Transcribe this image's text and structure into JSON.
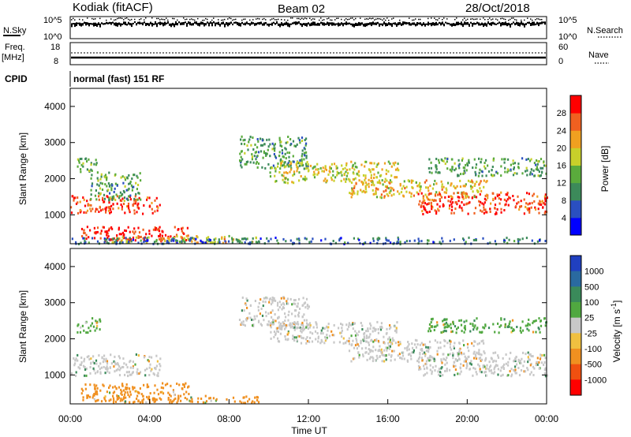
{
  "header": {
    "station": "Kodiak (fitACF)",
    "beam": "Beam 02",
    "date": "28/Oct/2018"
  },
  "nsky_panel": {
    "left_label": "N.Sky",
    "left_ticks": [
      "10^5",
      "10^0"
    ],
    "right_label": "N.Search",
    "right_ticks": [
      "10^5",
      "10^0"
    ]
  },
  "freq_panel": {
    "left_label_line1": "Freq.",
    "left_label_line2": "[MHz]",
    "left_ticks": [
      "18",
      "8"
    ],
    "right_label": "Nave",
    "right_ticks": [
      "60",
      "0"
    ]
  },
  "cpid": {
    "label": "CPID",
    "program": "normal (fast) 151 RF"
  },
  "colors": {
    "power_scale": [
      "#0000ff",
      "#2a4fc0",
      "#3c8a5a",
      "#5aab3c",
      "#c8d02a",
      "#f0a020",
      "#f06020",
      "#ff0000"
    ],
    "velocity_scale": [
      "#2040c0",
      "#2a6aa0",
      "#3a8a5a",
      "#50a840",
      "#c8c8c8",
      "#f0c040",
      "#f09020",
      "#f05010",
      "#ff0000"
    ]
  },
  "chart_data": [
    {
      "type": "heatmap",
      "name": "power",
      "title": "",
      "xlabel": "Time UT",
      "ylabel": "Slant Range [km]",
      "xticks": [
        "00:00",
        "04:00",
        "08:00",
        "12:00",
        "16:00",
        "20:00",
        "00:00"
      ],
      "xlim": [
        0,
        24
      ],
      "ylim": [
        200,
        4500
      ],
      "yticks": [
        1000,
        2000,
        3000,
        4000
      ],
      "colorbar": {
        "label": "Power [dB]",
        "range": [
          0,
          32
        ],
        "ticks": [
          4,
          8,
          12,
          16,
          20,
          24,
          28
        ]
      },
      "echo_regions": [
        {
          "t": [
            0,
            4.5
          ],
          "r": [
            1050,
            1550
          ],
          "value": 28
        },
        {
          "t": [
            0.5,
            6
          ],
          "r": [
            300,
            700
          ],
          "value": 30
        },
        {
          "t": [
            0.3,
            1.5
          ],
          "r": [
            2200,
            2600
          ],
          "value": 14
        },
        {
          "t": [
            1,
            3.5
          ],
          "r": [
            1400,
            2200
          ],
          "value": 12
        },
        {
          "t": [
            2,
            9.5
          ],
          "r": [
            250,
            450
          ],
          "value": 20
        },
        {
          "t": [
            8.5,
            12
          ],
          "r": [
            2300,
            3200
          ],
          "value": 12
        },
        {
          "t": [
            10,
            16.5
          ],
          "r": [
            1900,
            2500
          ],
          "value": 18
        },
        {
          "t": [
            14,
            21
          ],
          "r": [
            1500,
            2000
          ],
          "value": 20
        },
        {
          "t": [
            17.5,
            24
          ],
          "r": [
            1050,
            1650
          ],
          "value": 28
        },
        {
          "t": [
            18,
            24
          ],
          "r": [
            2100,
            2600
          ],
          "value": 12
        },
        {
          "t": [
            0,
            24
          ],
          "r": [
            220,
            400
          ],
          "value": 8
        }
      ]
    },
    {
      "type": "heatmap",
      "name": "velocity",
      "title": "",
      "xlabel": "Time UT",
      "ylabel": "Slant Range [km]",
      "xticks": [
        "00:00",
        "04:00",
        "08:00",
        "12:00",
        "16:00",
        "20:00",
        "00:00"
      ],
      "xlim": [
        0,
        24
      ],
      "ylim": [
        200,
        4500
      ],
      "yticks": [
        1000,
        2000,
        3000,
        4000
      ],
      "colorbar": {
        "label": "Velocity [m s^-1]",
        "ticks": [
          "1000",
          "500",
          "100",
          "25",
          "-25",
          "-100",
          "-500",
          "-1000"
        ]
      },
      "echo_regions": [
        {
          "t": [
            0,
            4.5
          ],
          "r": [
            1000,
            1600
          ],
          "value": 0
        },
        {
          "t": [
            0.5,
            6
          ],
          "r": [
            300,
            800
          ],
          "value": -200
        },
        {
          "t": [
            0.3,
            1.5
          ],
          "r": [
            2200,
            2600
          ],
          "value": 100
        },
        {
          "t": [
            2,
            9.5
          ],
          "r": [
            250,
            450
          ],
          "value": -100
        },
        {
          "t": [
            8.5,
            12
          ],
          "r": [
            2300,
            3200
          ],
          "value": 0
        },
        {
          "t": [
            10,
            16.5
          ],
          "r": [
            1900,
            2500
          ],
          "value": 0
        },
        {
          "t": [
            14,
            21
          ],
          "r": [
            1400,
            2000
          ],
          "value": 0
        },
        {
          "t": [
            17.5,
            24
          ],
          "r": [
            1000,
            1650
          ],
          "value": 0
        },
        {
          "t": [
            18,
            24
          ],
          "r": [
            2200,
            2600
          ],
          "value": 100
        }
      ]
    }
  ]
}
